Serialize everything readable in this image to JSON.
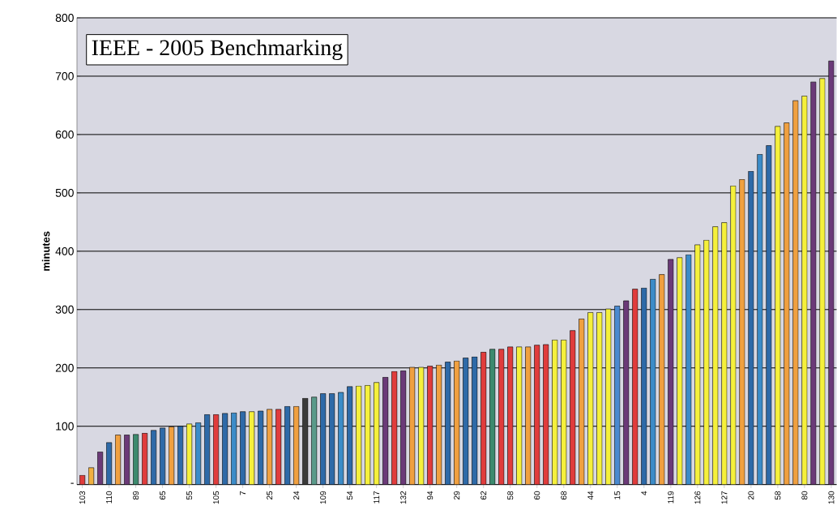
{
  "chart_data": {
    "type": "bar",
    "title": "IEEE - 2005 Benchmarking",
    "ylabel": "minutes",
    "categories": [
      "103",
      null,
      null,
      "110",
      null,
      null,
      "89",
      null,
      null,
      "65",
      null,
      null,
      "55",
      null,
      null,
      "105",
      null,
      null,
      "7",
      null,
      null,
      "25",
      null,
      null,
      "24",
      null,
      null,
      "109",
      null,
      null,
      "54",
      null,
      null,
      "117",
      null,
      null,
      "132",
      null,
      null,
      "94",
      null,
      null,
      "29",
      null,
      null,
      "62",
      null,
      null,
      "58",
      null,
      null,
      "60",
      null,
      null,
      "68",
      null,
      null,
      "44",
      null,
      null,
      "15",
      null,
      null,
      "4",
      null,
      null,
      "119",
      null,
      null,
      "126",
      null,
      null,
      "127",
      null,
      null,
      "20",
      null,
      null,
      "58",
      null,
      null,
      "80",
      null,
      null,
      "130"
    ],
    "values": [
      16,
      29,
      56,
      72,
      85,
      85,
      86,
      88,
      93,
      97,
      99,
      100,
      104,
      106,
      120,
      120,
      122,
      123,
      125,
      125,
      126,
      129,
      129,
      134,
      134,
      148,
      150,
      156,
      156,
      158,
      168,
      169,
      170,
      175,
      184,
      194,
      195,
      201,
      201,
      203,
      205,
      210,
      212,
      217,
      219,
      227,
      232,
      232,
      236,
      236,
      236,
      239,
      240,
      248,
      248,
      264,
      284,
      295,
      295,
      301,
      306,
      315,
      335,
      337,
      352,
      360,
      386,
      389,
      394,
      411,
      419,
      442,
      449,
      512,
      523,
      537,
      566,
      581,
      614,
      620,
      658,
      666,
      690,
      696,
      726
    ],
    "colors": [
      "#e03c3c",
      "#f0b040",
      "#6b3a78",
      "#2e6aa8",
      "#f0a040",
      "#6b3a78",
      "#3c8a6e",
      "#e03c3c",
      "#2e6aa8",
      "#2e6aa8",
      "#f0a040",
      "#2e6aa8",
      "#f5f03c",
      "#3c8cc8",
      "#2e6aa8",
      "#e03c3c",
      "#2e6aa8",
      "#3c8cc8",
      "#2e6aa8",
      "#f5f03c",
      "#2e6aa8",
      "#f0a040",
      "#e03c3c",
      "#2e6aa8",
      "#f0a040",
      "#3a3a3a",
      "#5a9a8a",
      "#2e6aa8",
      "#2e6aa8",
      "#3c8cc8",
      "#2e6aa8",
      "#f5f03c",
      "#f5f03c",
      "#f5f03c",
      "#6b3a78",
      "#e03c3c",
      "#6b3a78",
      "#f0a040",
      "#f5f03c",
      "#e03c3c",
      "#f0a040",
      "#2e6aa8",
      "#f0a040",
      "#2e6aa8",
      "#2e6aa8",
      "#e03c3c",
      "#3c8a6e",
      "#e03c3c",
      "#e03c3c",
      "#f5f03c",
      "#f0a040",
      "#e03c3c",
      "#e03c3c",
      "#f5f03c",
      "#f5f03c",
      "#e03c3c",
      "#f0a040",
      "#f5f03c",
      "#f5f03c",
      "#f5f03c",
      "#4a8ad0",
      "#6b3a78",
      "#e03c3c",
      "#2e6aa8",
      "#3c8cc8",
      "#f0a040",
      "#6b3a78",
      "#f5f03c",
      "#3c8cc8",
      "#f5f03c",
      "#f5f03c",
      "#f5f03c",
      "#f5f03c",
      "#f5f03c",
      "#f0a040",
      "#2e6aa8",
      "#3c8cc8",
      "#2e6aa8",
      "#f5f03c",
      "#f0a040",
      "#f0a040",
      "#f5f03c",
      "#6b3a78",
      "#f5f03c",
      "#6b3a78"
    ],
    "ylim": [
      0,
      800
    ],
    "yticks": [
      {
        "value": 0,
        "label": "-"
      },
      100,
      200,
      300,
      400,
      500,
      600,
      700,
      800
    ],
    "grid": "y"
  }
}
